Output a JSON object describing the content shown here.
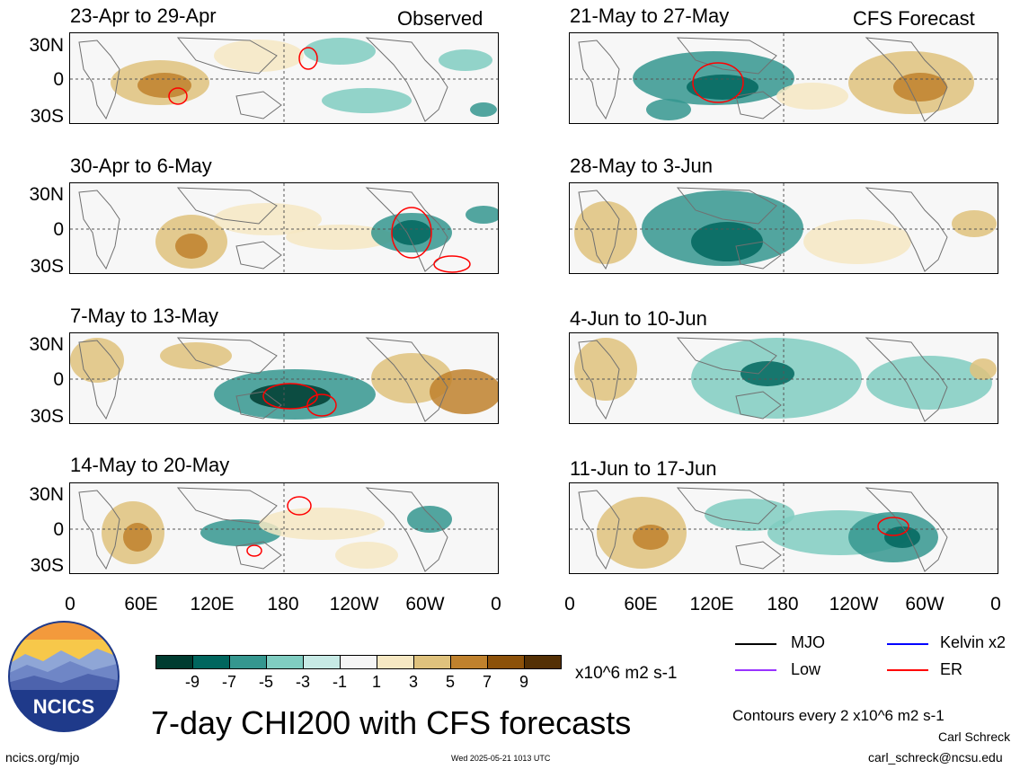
{
  "labels": {
    "observed": "Observed",
    "forecast": "CFS Forecast"
  },
  "panels_left": [
    {
      "title": "23-Apr to 29-Apr"
    },
    {
      "title": "30-Apr to 6-May"
    },
    {
      "title": "7-May to 13-May"
    },
    {
      "title": "14-May to 20-May"
    }
  ],
  "panels_right": [
    {
      "title": "21-May to 27-May"
    },
    {
      "title": "28-May to 3-Jun"
    },
    {
      "title": "4-Jun to 10-Jun"
    },
    {
      "title": "11-Jun to 17-Jun"
    }
  ],
  "y_ticks": [
    "30N",
    "0",
    "30S"
  ],
  "x_ticks": [
    "0",
    "60E",
    "120E",
    "180",
    "120W",
    "60W",
    "0"
  ],
  "colorbar": {
    "colors": [
      "#003c30",
      "#01665e",
      "#35978f",
      "#80cdc1",
      "#c7eae5",
      "#f5f5f5",
      "#f6e8c3",
      "#dfc27d",
      "#bf812d",
      "#8c510a",
      "#543005"
    ],
    "labels": [
      "-9",
      "-7",
      "-5",
      "-3",
      "-1",
      "1",
      "3",
      "5",
      "7",
      "9"
    ],
    "units": "x10^6 m2 s-1"
  },
  "legend": {
    "items": [
      {
        "label": "MJO",
        "color": "#000000"
      },
      {
        "label": "Kelvin x2",
        "color": "#0000ff"
      },
      {
        "label": "Low",
        "color": "#9933ff"
      },
      {
        "label": "ER",
        "color": "#ff0000"
      }
    ],
    "contours_note": "Contours every 2 x10^6 m2 s-1"
  },
  "logo_text": "NCICS",
  "main_title": "7-day CHI200 with CFS forecasts",
  "footer": {
    "url": "ncics.org/mjo",
    "timestamp": "Wed 2025-05-21 1013 UTC",
    "author": "Carl Schreck",
    "email": "carl_schreck@ncsu.edu"
  }
}
